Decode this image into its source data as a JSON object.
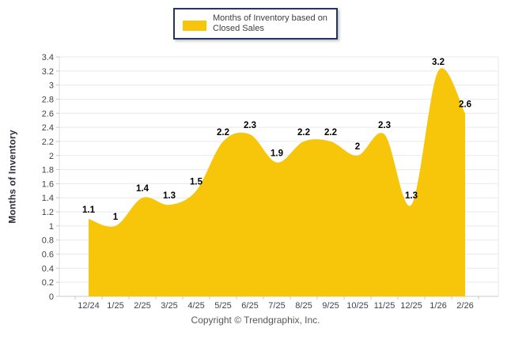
{
  "window": {
    "background_color": "#FFFFFF"
  },
  "legend": {
    "label": "Months of Inventory based on Closed Sales",
    "swatch_color": "#F7C60A",
    "border_color": "#24365F",
    "text_color": "#404040",
    "position": "top-center"
  },
  "footer": {
    "text": "Copyright © Trendgraphix, Inc."
  },
  "chart_data": {
    "type": "area",
    "title": "",
    "categories": [
      "12/24",
      "1/25",
      "2/25",
      "3/25",
      "4/25",
      "5/25",
      "6/25",
      "7/25",
      "8/25",
      "9/25",
      "10/25",
      "11/25",
      "12/25",
      "1/26",
      "2/26"
    ],
    "series": [
      {
        "name": "Months of Inventory based on Closed Sales",
        "values": [
          1.1,
          1,
          1.4,
          1.3,
          1.5,
          2.2,
          2.3,
          1.9,
          2.2,
          2.2,
          2,
          2.3,
          1.3,
          3.2,
          2.6
        ]
      }
    ],
    "data_labels": [
      "1.1",
      "1",
      "1.4",
      "1.3",
      "1.5",
      "2.2",
      "2.3",
      "1.9",
      "2.2",
      "2.2",
      "2",
      "2.3",
      "1.3",
      "3.2",
      "2.6"
    ],
    "xlabel": "",
    "ylabel": "Months of Inventory",
    "ylim": [
      0,
      3.4
    ],
    "ytick_step": 0.2,
    "grid": "horizontal",
    "legend_position": "top-center",
    "curve": "smooth-spline",
    "area_color": "#F7C60A",
    "data_label_color": "#000000",
    "axis_text_color": "#41424E",
    "gridline_color": "#E9E9E9",
    "axis_line_color": "#C8C8C8"
  }
}
